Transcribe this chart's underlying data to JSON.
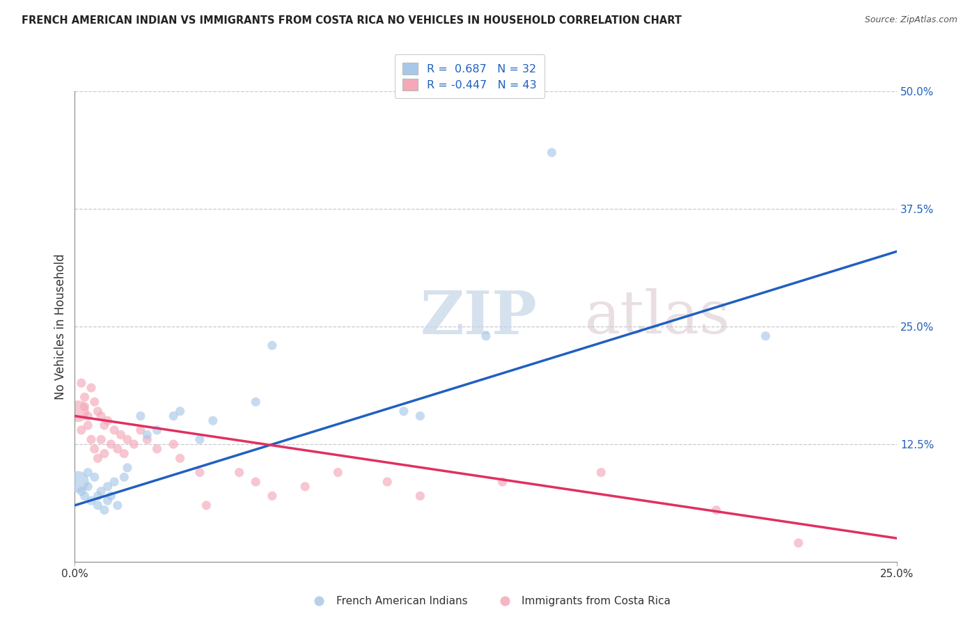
{
  "title": "FRENCH AMERICAN INDIAN VS IMMIGRANTS FROM COSTA RICA NO VEHICLES IN HOUSEHOLD CORRELATION CHART",
  "source": "Source: ZipAtlas.com",
  "ylabel": "No Vehicles in Household",
  "xlim": [
    0.0,
    0.25
  ],
  "ylim": [
    0.0,
    0.5
  ],
  "xtick_vals": [
    0.0,
    0.25
  ],
  "xtick_labels": [
    "0.0%",
    "25.0%"
  ],
  "ytick_vals": [
    0.0,
    0.125,
    0.25,
    0.375,
    0.5
  ],
  "ytick_labels": [
    "",
    "12.5%",
    "25.0%",
    "37.5%",
    "50.0%"
  ],
  "legend_line1": "R =  0.687   N = 32",
  "legend_line2": "R = -0.447   N = 43",
  "blue_color": "#a8c8e8",
  "pink_color": "#f4a8b8",
  "blue_line_color": "#2060c0",
  "pink_line_color": "#e03060",
  "watermark_zip": "ZIP",
  "watermark_atlas": "atlas",
  "bg_color": "#ffffff",
  "grid_color": "#c8c8d0",
  "blue_scatter": [
    [
      0.001,
      0.085
    ],
    [
      0.002,
      0.075
    ],
    [
      0.003,
      0.07
    ],
    [
      0.004,
      0.095
    ],
    [
      0.004,
      0.08
    ],
    [
      0.005,
      0.065
    ],
    [
      0.006,
      0.09
    ],
    [
      0.007,
      0.07
    ],
    [
      0.007,
      0.06
    ],
    [
      0.008,
      0.075
    ],
    [
      0.009,
      0.055
    ],
    [
      0.01,
      0.08
    ],
    [
      0.01,
      0.065
    ],
    [
      0.011,
      0.07
    ],
    [
      0.012,
      0.085
    ],
    [
      0.013,
      0.06
    ],
    [
      0.015,
      0.09
    ],
    [
      0.016,
      0.1
    ],
    [
      0.02,
      0.155
    ],
    [
      0.022,
      0.135
    ],
    [
      0.025,
      0.14
    ],
    [
      0.03,
      0.155
    ],
    [
      0.032,
      0.16
    ],
    [
      0.038,
      0.13
    ],
    [
      0.042,
      0.15
    ],
    [
      0.055,
      0.17
    ],
    [
      0.06,
      0.23
    ],
    [
      0.1,
      0.16
    ],
    [
      0.105,
      0.155
    ],
    [
      0.125,
      0.24
    ],
    [
      0.21,
      0.24
    ],
    [
      0.145,
      0.435
    ]
  ],
  "blue_sizes_s": [
    80,
    80,
    80,
    80,
    80,
    80,
    80,
    80,
    80,
    80,
    80,
    80,
    80,
    80,
    80,
    80,
    80,
    80,
    80,
    80,
    80,
    80,
    80,
    80,
    80,
    80,
    80,
    80,
    80,
    80,
    80,
    80
  ],
  "blue_big_idx": 0,
  "pink_scatter": [
    [
      0.001,
      0.16
    ],
    [
      0.002,
      0.19
    ],
    [
      0.002,
      0.14
    ],
    [
      0.003,
      0.175
    ],
    [
      0.003,
      0.165
    ],
    [
      0.004,
      0.155
    ],
    [
      0.004,
      0.145
    ],
    [
      0.005,
      0.185
    ],
    [
      0.005,
      0.13
    ],
    [
      0.006,
      0.17
    ],
    [
      0.006,
      0.12
    ],
    [
      0.007,
      0.16
    ],
    [
      0.007,
      0.11
    ],
    [
      0.008,
      0.155
    ],
    [
      0.008,
      0.13
    ],
    [
      0.009,
      0.145
    ],
    [
      0.009,
      0.115
    ],
    [
      0.01,
      0.15
    ],
    [
      0.011,
      0.125
    ],
    [
      0.012,
      0.14
    ],
    [
      0.013,
      0.12
    ],
    [
      0.014,
      0.135
    ],
    [
      0.015,
      0.115
    ],
    [
      0.016,
      0.13
    ],
    [
      0.018,
      0.125
    ],
    [
      0.02,
      0.14
    ],
    [
      0.022,
      0.13
    ],
    [
      0.025,
      0.12
    ],
    [
      0.03,
      0.125
    ],
    [
      0.032,
      0.11
    ],
    [
      0.038,
      0.095
    ],
    [
      0.04,
      0.06
    ],
    [
      0.05,
      0.095
    ],
    [
      0.055,
      0.085
    ],
    [
      0.06,
      0.07
    ],
    [
      0.07,
      0.08
    ],
    [
      0.08,
      0.095
    ],
    [
      0.095,
      0.085
    ],
    [
      0.105,
      0.07
    ],
    [
      0.13,
      0.085
    ],
    [
      0.16,
      0.095
    ],
    [
      0.195,
      0.055
    ],
    [
      0.22,
      0.02
    ]
  ],
  "pink_big_idx": 0,
  "blue_regression": [
    0.0,
    0.25,
    0.06,
    0.33
  ],
  "pink_regression": [
    0.0,
    0.25,
    0.155,
    0.025
  ]
}
